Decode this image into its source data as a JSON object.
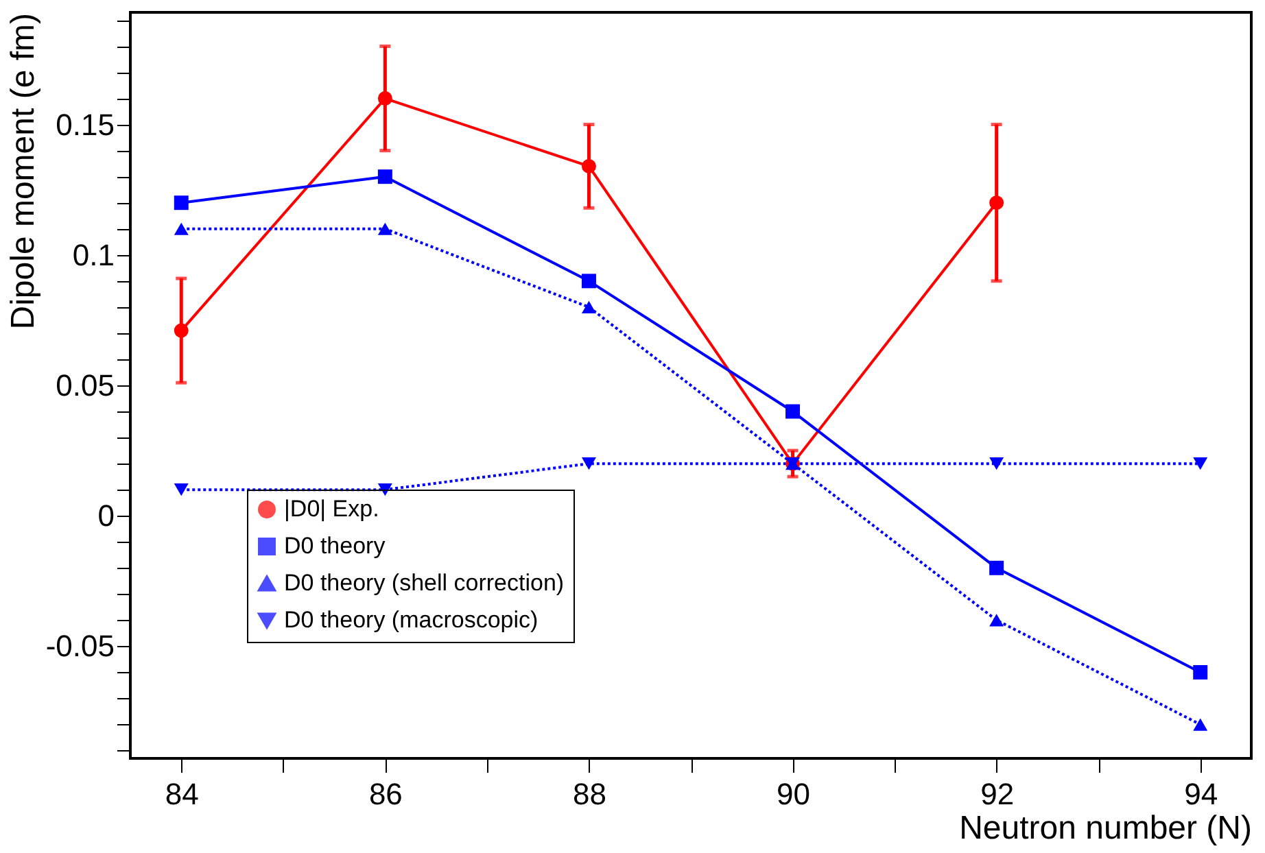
{
  "chart_data": {
    "type": "line",
    "xlabel": "Neutron number (N)",
    "ylabel": "Dipole moment (e fm)",
    "x": [
      84,
      86,
      88,
      90,
      92,
      94
    ],
    "xlim": [
      83.5,
      94.5
    ],
    "xticks": [
      84,
      {
        "value": 85,
        "label": null
      },
      86,
      {
        "value": 87,
        "label": null
      },
      88,
      {
        "value": 89,
        "label": null
      },
      90,
      {
        "value": 91,
        "label": null
      },
      92,
      {
        "value": 93,
        "label": null
      },
      94
    ],
    "ylim": [
      -0.093,
      0.193
    ],
    "yticks": [
      {
        "value": -0.09,
        "label": null
      },
      {
        "value": -0.08,
        "label": null
      },
      {
        "value": -0.07,
        "label": null
      },
      {
        "value": -0.06,
        "label": null
      },
      -0.05,
      {
        "value": -0.04,
        "label": null
      },
      {
        "value": -0.03,
        "label": null
      },
      {
        "value": -0.02,
        "label": null
      },
      {
        "value": -0.01,
        "label": null
      },
      0,
      {
        "value": 0.01,
        "label": null
      },
      {
        "value": 0.02,
        "label": null
      },
      {
        "value": 0.03,
        "label": null
      },
      {
        "value": 0.04,
        "label": null
      },
      0.05,
      {
        "value": 0.06,
        "label": null
      },
      {
        "value": 0.07,
        "label": null
      },
      {
        "value": 0.08,
        "label": null
      },
      {
        "value": 0.09,
        "label": null
      },
      0.1,
      {
        "value": 0.11,
        "label": null
      },
      {
        "value": 0.12,
        "label": null
      },
      {
        "value": 0.13,
        "label": null
      },
      {
        "value": 0.14,
        "label": null
      },
      0.15,
      {
        "value": 0.16,
        "label": null
      },
      {
        "value": 0.17,
        "label": null
      },
      {
        "value": 0.18,
        "label": null
      },
      {
        "value": 0.19,
        "label": null
      }
    ],
    "grid": false,
    "legend": "bottom left",
    "series": [
      {
        "name": "|D0| Exp.",
        "color": "#ff0000",
        "x": [
          84,
          86,
          88,
          90,
          92
        ],
        "values": [
          0.071,
          0.16,
          0.134,
          0.02,
          0.12
        ],
        "errors": [
          [
            0.051,
            0.091
          ],
          [
            0.14,
            0.18
          ],
          [
            0.118,
            0.15
          ],
          [
            0.015,
            0.025
          ],
          [
            0.09,
            0.15
          ]
        ],
        "marker": "circle",
        "line_style": "solid"
      },
      {
        "name": "D0 theory",
        "color": "#0000ff",
        "values": [
          0.12,
          0.13,
          0.09,
          0.04,
          -0.02,
          -0.06
        ],
        "marker": "square",
        "line_style": "solid"
      },
      {
        "name": "D0 theory (shell correction)",
        "color": "#0000ff",
        "values": [
          0.11,
          0.11,
          0.08,
          0.02,
          -0.04,
          -0.08
        ],
        "marker": "triangle",
        "line_style": "dotted"
      },
      {
        "name": "D0 theory (macroscopic)",
        "color": "#0000ff",
        "values": [
          0.01,
          0.01,
          0.02,
          0.02,
          0.02,
          0.02
        ],
        "marker": "triangle-down",
        "line_style": "dotted"
      }
    ]
  }
}
